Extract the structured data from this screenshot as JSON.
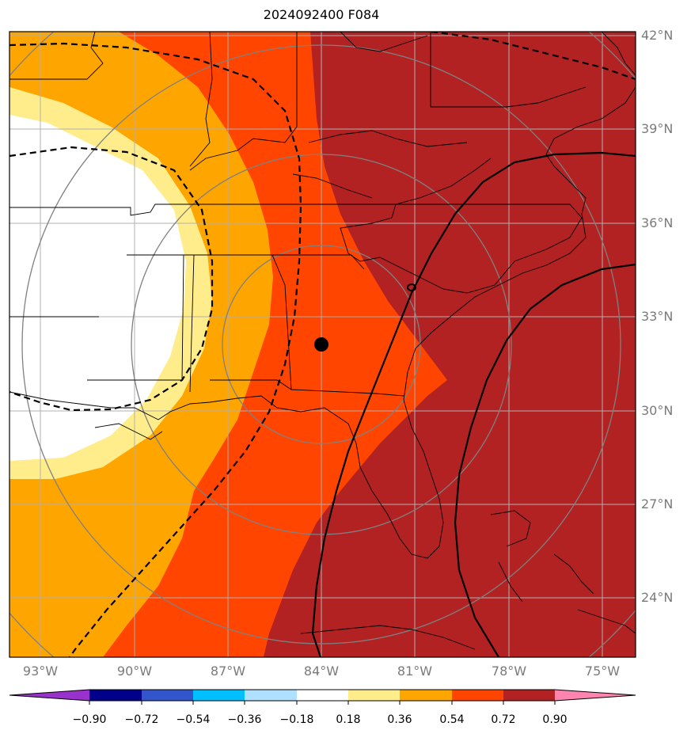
{
  "title": "2024092400 F084",
  "lon_labels": [
    "93°W",
    "90°W",
    "87°W",
    "84°W",
    "81°W",
    "78°W",
    "75°W"
  ],
  "lat_labels": [
    "42°N",
    "39°N",
    "36°N",
    "33°N",
    "30°N",
    "27°N",
    "24°N"
  ],
  "colorbar": {
    "labels": [
      "−0.90",
      "−0.72",
      "−0.54",
      "−0.36",
      "−0.18",
      "0.18",
      "0.36",
      "0.54",
      "0.72",
      "0.90"
    ],
    "colors": [
      "#9932cc",
      "#00008b",
      "#3355cc",
      "#00bfff",
      "#b0e0ff",
      "#ffffff",
      "#ffec8b",
      "#ffa500",
      "#ff4500",
      "#b22222",
      "#ff85b0"
    ]
  },
  "field_colors": {
    "lightest": "#ffec8b",
    "light": "#ffa500",
    "mid": "#ff4500",
    "dark": "#b22222",
    "neutral": "#ffffff"
  },
  "marker": {
    "lon": -84,
    "lat": 32.1
  }
}
